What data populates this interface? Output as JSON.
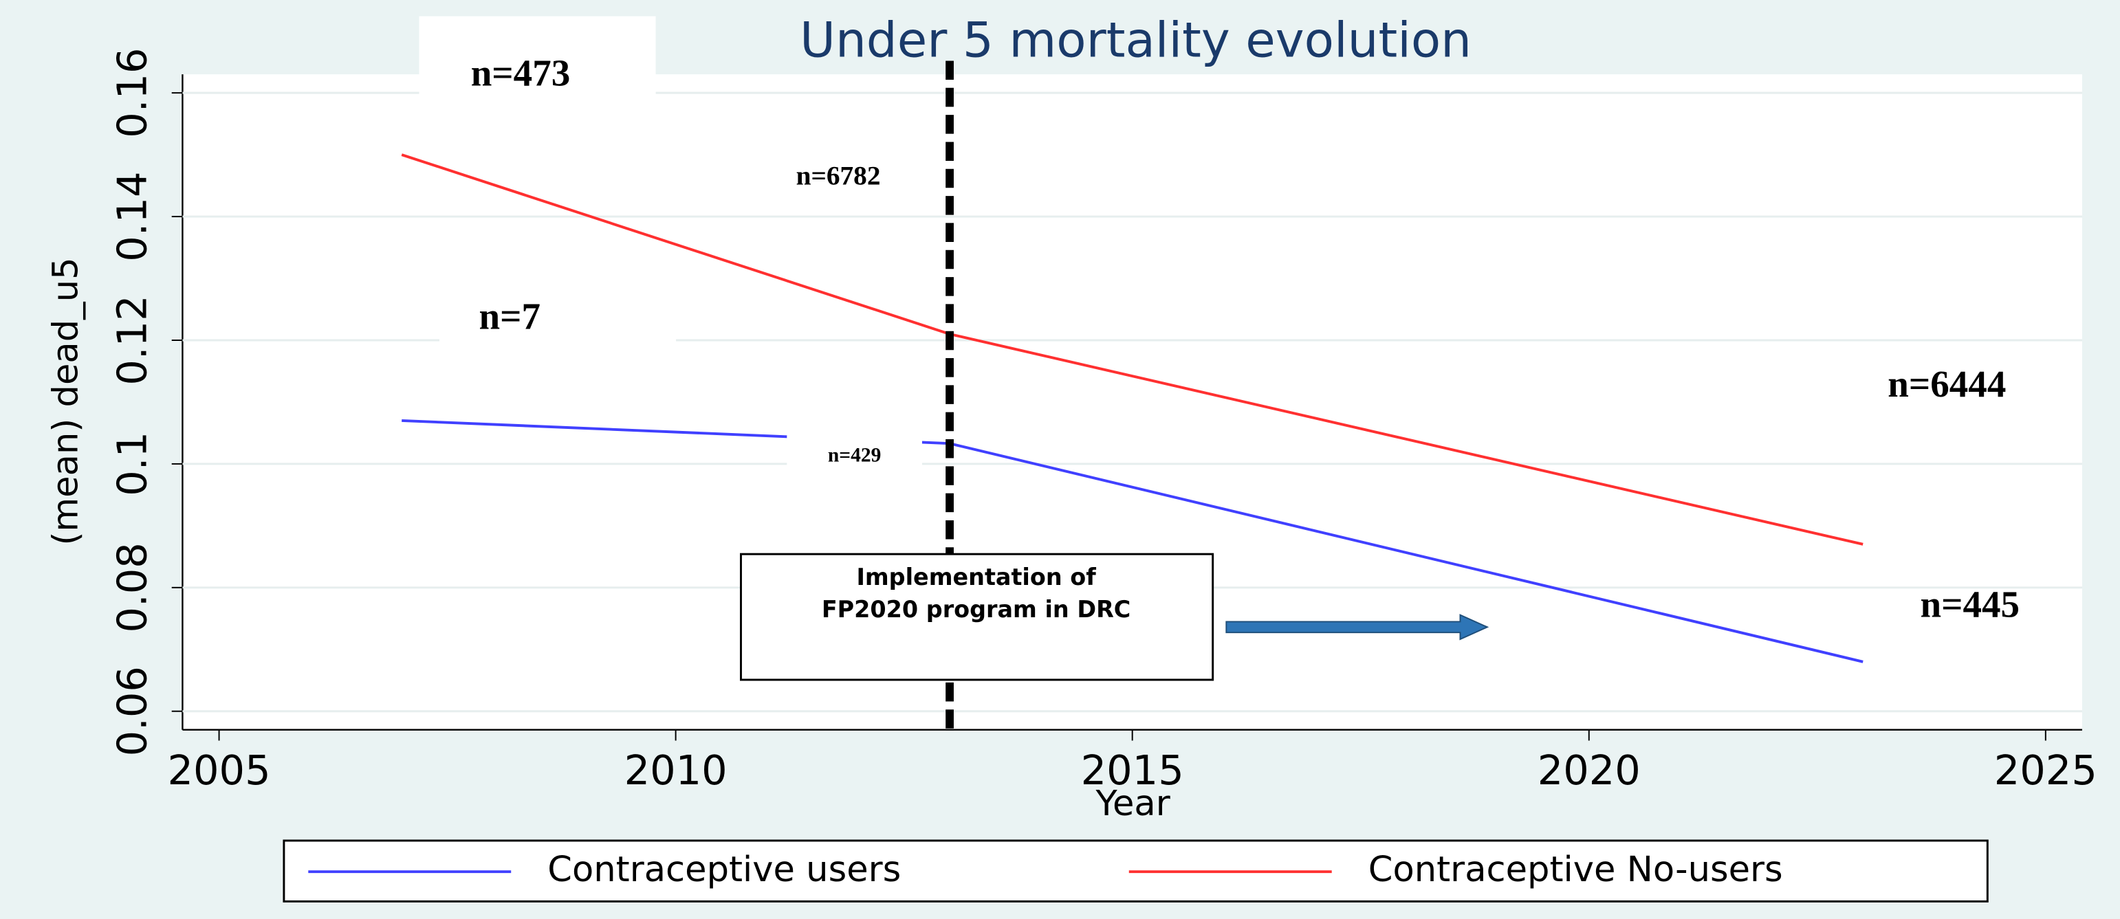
{
  "chart_data": {
    "type": "line",
    "title": "Under 5 mortality evolution",
    "x_label": "Year",
    "y_label": "(mean) dead_u5",
    "x": [
      2007,
      2013,
      2023
    ],
    "series": [
      {
        "name": "Contraceptive users",
        "color": "#4040ff",
        "values": [
          0.107,
          0.1033,
          0.068
        ]
      },
      {
        "name": "Contraceptive No-users",
        "color": "#ff3030",
        "values": [
          0.15,
          0.121,
          0.087
        ]
      }
    ],
    "xlim": [
      2004.6,
      2025.4
    ],
    "xticks": [
      2005,
      2010,
      2015,
      2020,
      2025
    ],
    "ylim": [
      0.057,
      0.163
    ],
    "yticks": [
      0.06,
      0.08,
      0.1,
      0.12,
      0.14,
      0.16
    ],
    "grid": true,
    "vline": 2013,
    "annotations": [
      "n=473",
      "n=6782",
      "n=7",
      "n=429",
      "n=6444",
      "n=445"
    ],
    "box_text": [
      "Implementation of",
      "FP2020 program in DRC"
    ]
  }
}
